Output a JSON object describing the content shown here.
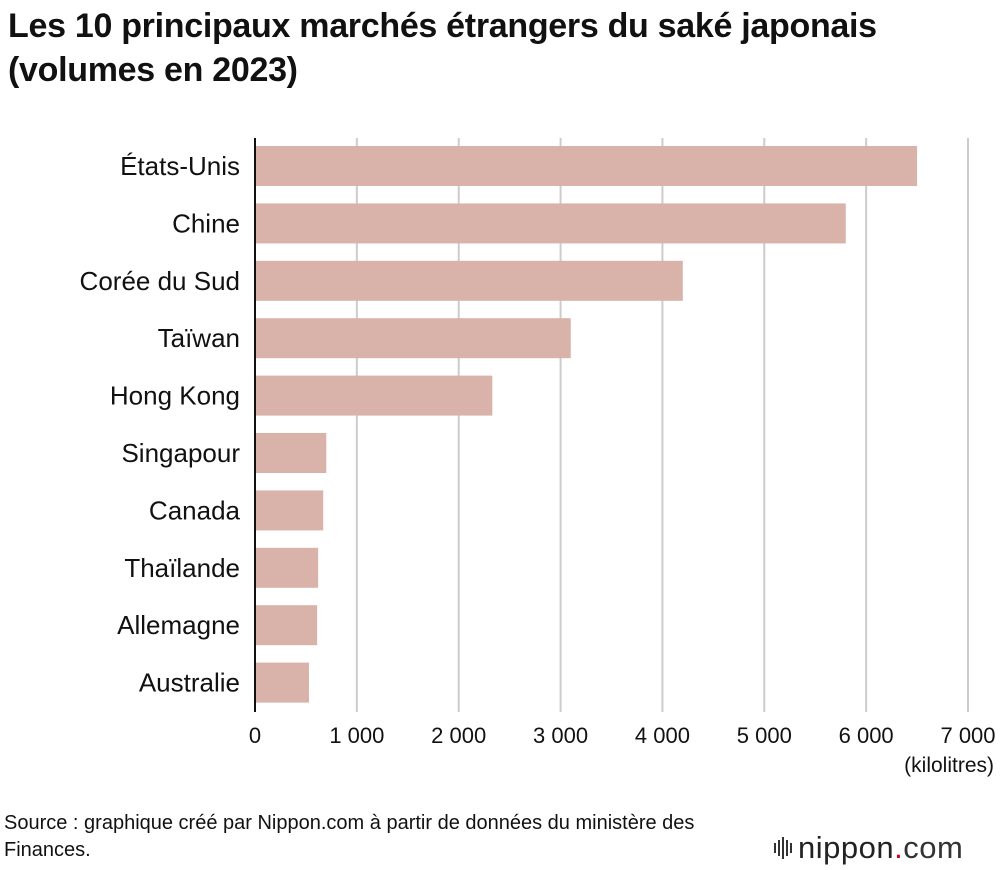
{
  "title": "Les 10 principaux marchés étrangers du saké japonais (volumes en 2023)",
  "unit_label": "(kilolitres)",
  "source": "Source : graphique créé par Nippon.com à partir de données du ministère des Finances.",
  "logo": {
    "name": "nippon",
    "dot": ".",
    "suffix": "com",
    "icon": "nippon-bars-logo-icon"
  },
  "colors": {
    "bar": "#d9b3a9",
    "grid": "#cccccc",
    "axis": "#111111",
    "logo_dot": "#d0021b"
  },
  "chart_data": {
    "type": "bar",
    "orientation": "horizontal",
    "title": "Les 10 principaux marchés étrangers du saké japonais (volumes en 2023)",
    "xlabel": "(kilolitres)",
    "ylabel": "",
    "categories": [
      "États-Unis",
      "Chine",
      "Corée du Sud",
      "Taïwan",
      "Hong Kong",
      "Singapour",
      "Canada",
      "Thaïlande",
      "Allemagne",
      "Australie"
    ],
    "values": [
      6500,
      5800,
      4200,
      3100,
      2330,
      700,
      670,
      620,
      610,
      530
    ],
    "xlim": [
      0,
      7000
    ],
    "ticks": [
      0,
      1000,
      2000,
      3000,
      4000,
      5000,
      6000,
      7000
    ],
    "tick_labels": [
      "0",
      "1 000",
      "2 000",
      "3 000",
      "4 000",
      "5 000",
      "6 000",
      "7 000"
    ],
    "grid": true,
    "legend": "none"
  }
}
